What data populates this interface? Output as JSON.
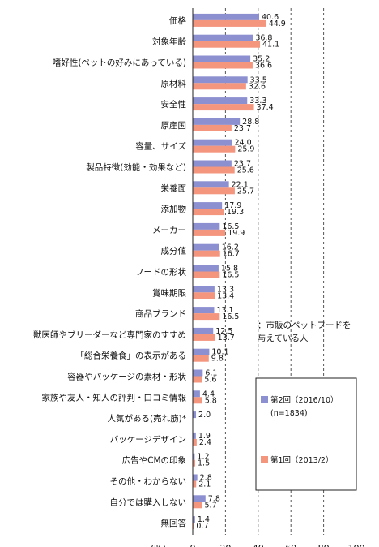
{
  "chart_data": {
    "type": "bar",
    "orientation": "horizontal",
    "categories": [
      "価格",
      "対象年齢",
      "嗜好性(ペットの好みにあっている)",
      "原材料",
      "安全性",
      "原産国",
      "容量、サイズ",
      "製品特徴(効能・効果など)",
      "栄養面",
      "添加物",
      "メーカー",
      "成分値",
      "フードの形状",
      "賞味期限",
      "商品ブランド",
      "獣医師やブリーダーなど専門家のすすめ",
      "「総合栄養食」の表示がある",
      "容器やパッケージの素材・形状",
      "家族や友人・知人の評判・口コミ情報",
      "人気がある(売れ筋)*",
      "パッケージデザイン",
      "広告やCMの印象",
      "その他・わからない",
      "自分では購入しない",
      "無回答"
    ],
    "series": [
      {
        "name": "第2回（2016/10）\n(n=1834)",
        "color": "#8c8fd0",
        "values": [
          40.6,
          36.8,
          35.2,
          33.5,
          33.3,
          28.8,
          24.0,
          23.7,
          22.1,
          17.9,
          16.5,
          16.2,
          15.8,
          13.3,
          13.1,
          12.5,
          10.1,
          6.1,
          4.4,
          2.0,
          1.9,
          1.2,
          2.8,
          7.8,
          1.4
        ]
      },
      {
        "name": "第1回（2013/2）",
        "color": "#f4957d",
        "values": [
          44.9,
          41.1,
          36.6,
          32.6,
          37.4,
          23.7,
          25.9,
          25.6,
          25.7,
          19.3,
          19.9,
          16.7,
          16.5,
          13.4,
          16.5,
          13.7,
          9.8,
          5.6,
          5.8,
          null,
          2.4,
          1.5,
          2.1,
          5.7,
          0.7
        ]
      }
    ],
    "value_labels": [
      [
        "40.6",
        "44.9"
      ],
      [
        "36.8",
        "41.1"
      ],
      [
        "35.2",
        "36.6"
      ],
      [
        "33.5",
        "32.6"
      ],
      [
        "33.3",
        "37.4"
      ],
      [
        "28.8",
        "23.7"
      ],
      [
        "24.0",
        "25.9"
      ],
      [
        "23.7",
        "25.6"
      ],
      [
        "22.1",
        "25.7"
      ],
      [
        "17.9",
        "19.3"
      ],
      [
        "16.5",
        "19.9"
      ],
      [
        "16.2",
        "16.7"
      ],
      [
        "15.8",
        "16.5"
      ],
      [
        "13.3",
        "13.4"
      ],
      [
        "13.1",
        "16.5"
      ],
      [
        "12.5",
        "13.7"
      ],
      [
        "10.1",
        "9.8"
      ],
      [
        "6.1",
        "5.6"
      ],
      [
        "4.4",
        "5.8"
      ],
      [
        "2.0",
        ""
      ],
      [
        "1.9",
        "2.4"
      ],
      [
        "1.2",
        "1.5"
      ],
      [
        "2.8",
        "2.1"
      ],
      [
        "7.8",
        "5.7"
      ],
      [
        "1.4",
        "0.7"
      ]
    ],
    "xlim": [
      0,
      100
    ],
    "xticks": [
      "0",
      "20",
      "40",
      "60",
      "80",
      "100"
    ],
    "x_unit": "(%)",
    "grid": "vertical dashed at 20, 40, 60, 80",
    "annotation": "：市販のペットフードを\n与えている人",
    "legend_placement": "right"
  }
}
